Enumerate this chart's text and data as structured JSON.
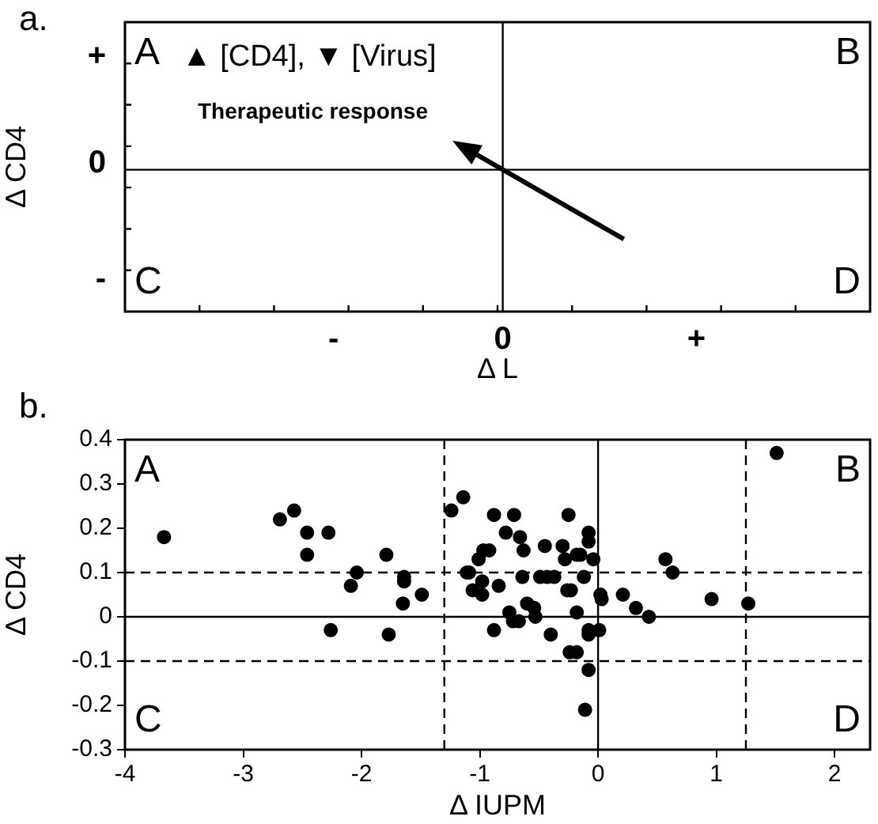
{
  "chart_data": [
    {
      "type": "other",
      "xlabel": "Δ L",
      "ylabel": "Δ CD4",
      "annotations": [
        "a.",
        "A",
        "B",
        "C",
        "D",
        "▲ [CD4], ▼ [Virus]",
        "Therapeutic response",
        "-",
        "0",
        "+",
        "+",
        "0",
        "-"
      ]
    },
    {
      "type": "scatter",
      "xlabel": "Δ IUPM",
      "ylabel": "Δ CD4",
      "xlim": [
        -4,
        2.3
      ],
      "ylim": [
        -0.3,
        0.4
      ],
      "xticks": [
        -4,
        -3,
        -2,
        -1,
        0,
        1,
        2
      ],
      "yticks": [
        -0.3,
        -0.2,
        -0.1,
        0,
        0.1,
        0.2,
        0.3,
        0.4
      ],
      "marker": "circle",
      "grid": false,
      "ref_lines": [
        {
          "axis": "x",
          "value": 0,
          "color": "#000000",
          "line_style": "solid"
        },
        {
          "axis": "y",
          "value": 0,
          "color": "#000000",
          "line_style": "solid"
        },
        {
          "axis": "x",
          "value": -1.3,
          "color": "#000000",
          "line_style": "dashed"
        },
        {
          "axis": "x",
          "value": 1.25,
          "color": "#000000",
          "line_style": "dashed"
        },
        {
          "axis": "y",
          "value": 0.1,
          "color": "#000000",
          "line_style": "dashed"
        },
        {
          "axis": "y",
          "value": -0.1,
          "color": "#000000",
          "line_style": "dashed"
        }
      ],
      "annotations": [
        "b.",
        "A",
        "B",
        "C",
        "D"
      ],
      "series": [
        {
          "color": "#000000",
          "x": [
            -3.67,
            -2.69,
            -2.57,
            -2.46,
            -2.46,
            -2.28,
            -2.26,
            -2.09,
            -2.04,
            -1.79,
            -1.77,
            -1.64,
            -1.64,
            -1.65,
            -1.49,
            -1.24,
            -1.14,
            -1.11,
            1.51,
            -0.88,
            -0.71,
            -0.25,
            -0.78,
            -0.66,
            -0.63,
            -0.97,
            -0.92,
            -1.01,
            -1.09,
            -0.98,
            -1.06,
            -0.98,
            -0.84,
            -0.64,
            -0.49,
            -0.43,
            -0.37,
            -0.45,
            -0.3,
            -0.28,
            -0.18,
            -0.15,
            -0.08,
            -0.08,
            -0.04,
            -0.12,
            -0.26,
            -0.23,
            0.02,
            0.03,
            0.21,
            0.32,
            0.43,
            0.57,
            0.63,
            0.96,
            1.27,
            -0.18,
            -0.6,
            -0.54,
            -0.75,
            -0.72,
            -0.67,
            -0.53,
            -0.88,
            -0.4,
            -0.24,
            -0.18,
            -0.08,
            -0.08,
            0.01,
            -0.08,
            -0.11
          ],
          "values": [
            0.18,
            0.22,
            0.24,
            0.19,
            0.14,
            0.19,
            -0.03,
            0.07,
            0.1,
            0.14,
            -0.04,
            0.09,
            0.08,
            0.03,
            0.05,
            0.24,
            0.27,
            0.1,
            0.37,
            0.23,
            0.23,
            0.23,
            0.19,
            0.18,
            0.15,
            0.15,
            0.15,
            0.13,
            0.1,
            0.08,
            0.06,
            0.05,
            0.07,
            0.09,
            0.09,
            0.09,
            0.09,
            0.16,
            0.16,
            0.13,
            0.14,
            0.14,
            0.19,
            0.17,
            0.13,
            0.09,
            0.06,
            0.06,
            0.05,
            0.04,
            0.05,
            0.02,
            0.0,
            0.13,
            0.1,
            0.04,
            0.03,
            0.01,
            0.03,
            0.02,
            0.01,
            -0.01,
            -0.01,
            0.0,
            -0.03,
            -0.04,
            -0.08,
            -0.08,
            -0.03,
            -0.04,
            -0.03,
            -0.12,
            -0.21
          ]
        }
      ]
    }
  ]
}
